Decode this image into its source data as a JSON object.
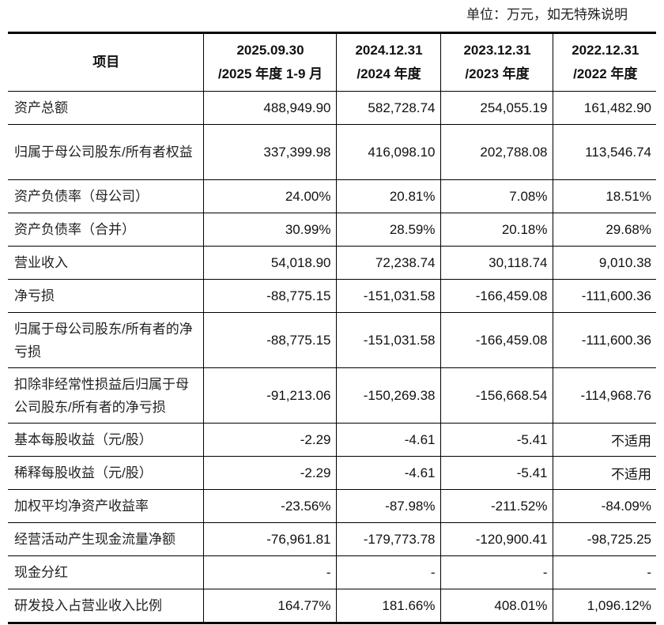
{
  "unit_note": "单位：万元，如无特殊说明",
  "header": {
    "item": "项目",
    "columns": [
      [
        "2025.09.30",
        "/2025 年度 1-9 月"
      ],
      [
        "2024.12.31",
        "/2024 年度"
      ],
      [
        "2023.12.31",
        "/2023 年度"
      ],
      [
        "2022.12.31",
        "/2022 年度"
      ]
    ]
  },
  "rows": [
    {
      "label": "资产总额",
      "values": [
        "488,949.90",
        "582,728.74",
        "254,055.19",
        "161,482.90"
      ]
    },
    {
      "label": "归属于母公司股东/所有者权益",
      "values": [
        "337,399.98",
        "416,098.10",
        "202,788.08",
        "113,546.74"
      ]
    },
    {
      "label": "资产负债率（母公司）",
      "values": [
        "24.00%",
        "20.81%",
        "7.08%",
        "18.51%"
      ]
    },
    {
      "label": "资产负债率（合并）",
      "values": [
        "30.99%",
        "28.59%",
        "20.18%",
        "29.68%"
      ]
    },
    {
      "label": "营业收入",
      "values": [
        "54,018.90",
        "72,238.74",
        "30,118.74",
        "9,010.38"
      ]
    },
    {
      "label": "净亏损",
      "values": [
        "-88,775.15",
        "-151,031.58",
        "-166,459.08",
        "-111,600.36"
      ]
    },
    {
      "label": "归属于母公司股东/所有者的净亏损",
      "values": [
        "-88,775.15",
        "-151,031.58",
        "-166,459.08",
        "-111,600.36"
      ]
    },
    {
      "label": "扣除非经常性损益后归属于母公司股东/所有者的净亏损",
      "values": [
        "-91,213.06",
        "-150,269.38",
        "-156,668.54",
        "-114,968.76"
      ]
    },
    {
      "label": "基本每股收益（元/股）",
      "values": [
        "-2.29",
        "-4.61",
        "-5.41",
        "不适用"
      ]
    },
    {
      "label": "稀释每股收益（元/股）",
      "values": [
        "-2.29",
        "-4.61",
        "-5.41",
        "不适用"
      ]
    },
    {
      "label": "加权平均净资产收益率",
      "values": [
        "-23.56%",
        "-87.98%",
        "-211.52%",
        "-84.09%"
      ]
    },
    {
      "label": "经营活动产生现金流量净额",
      "values": [
        "-76,961.81",
        "-179,773.78",
        "-120,900.41",
        "-98,725.25"
      ]
    },
    {
      "label": "现金分红",
      "values": [
        "-",
        "-",
        "-",
        "-"
      ]
    },
    {
      "label": "研发投入占营业收入比例",
      "values": [
        "164.77%",
        "181.66%",
        "408.01%",
        "1,096.12%"
      ]
    }
  ]
}
